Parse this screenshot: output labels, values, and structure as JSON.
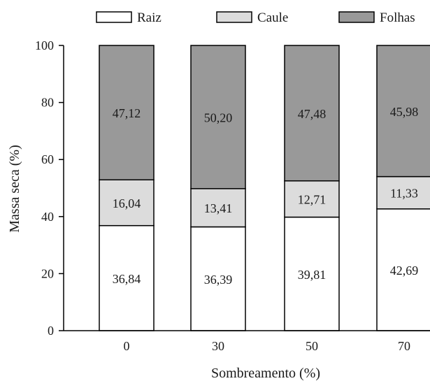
{
  "chart_data": {
    "type": "bar",
    "stacked": true,
    "categories": [
      "0",
      "30",
      "50",
      "70"
    ],
    "series": [
      {
        "name": "Raiz",
        "values": [
          36.84,
          36.39,
          39.81,
          42.69
        ],
        "labels": [
          "36,84",
          "36,39",
          "39,81",
          "42,69"
        ],
        "color": "#ffffff"
      },
      {
        "name": "Caule",
        "values": [
          16.04,
          13.41,
          12.71,
          11.33
        ],
        "labels": [
          "16,04",
          "13,41",
          "12,71",
          "11,33"
        ],
        "color": "#dcdcdc"
      },
      {
        "name": "Folhas",
        "values": [
          47.12,
          50.2,
          47.48,
          45.98
        ],
        "labels": [
          "47,12",
          "50,20",
          "47,48",
          "45,98"
        ],
        "color": "#999999"
      }
    ],
    "xlabel": "Sombreamento (%)",
    "ylabel": "Massa seca (%)",
    "ylim": [
      0,
      100
    ],
    "yticks": [
      "0",
      "20",
      "40",
      "60",
      "80",
      "100"
    ],
    "grid": false,
    "legend": "top"
  }
}
